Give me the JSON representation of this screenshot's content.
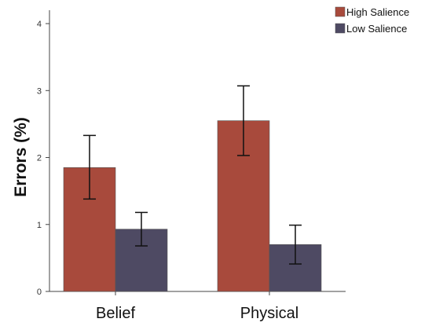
{
  "chart_data": {
    "type": "bar",
    "title": "",
    "xlabel": "",
    "ylabel": "Errors (%)",
    "ylim": [
      0,
      4.2
    ],
    "yticks": [
      0,
      1,
      2,
      3,
      4
    ],
    "categories": [
      "Belief",
      "Physical"
    ],
    "series": [
      {
        "name": "High Salience",
        "color": "#a84a3c",
        "values": [
          1.85,
          2.55
        ],
        "error_low": [
          1.38,
          2.03
        ],
        "error_high": [
          2.33,
          3.07
        ]
      },
      {
        "name": "Low Salience",
        "color": "#4e4a63",
        "values": [
          0.93,
          0.7
        ],
        "error_low": [
          0.68,
          0.41
        ],
        "error_high": [
          1.18,
          0.99
        ]
      }
    ],
    "legend": "top-right",
    "grid": false
  }
}
